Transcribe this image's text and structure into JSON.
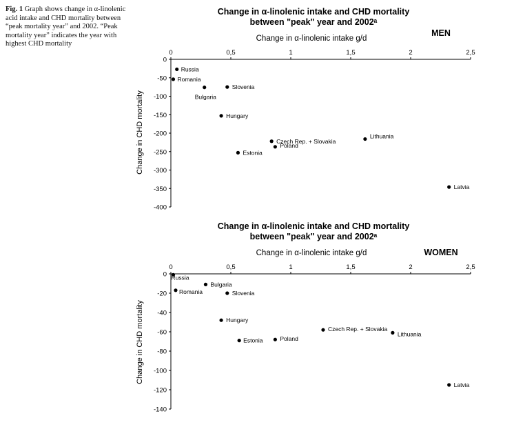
{
  "caption": {
    "fig_label": "Fig. 1",
    "text": "Graph shows change in α-linolenic acid intake and CHD mortality between “peak mortality year” and 2002. “Peak mortality year” indicates the year with highest CHD mortality"
  },
  "chart_data": [
    {
      "type": "scatter",
      "title": "Change in α-linolenic intake and CHD mortality",
      "subtitle": "between \"peak\" year and 2002ᵃ",
      "group_label": "MEN",
      "xlabel": "Change in α-linolenic intake g/d",
      "ylabel": "Change in CHD mortality",
      "xlim": [
        0,
        2.5
      ],
      "ylim": [
        -400,
        0
      ],
      "x_ticks": [
        0,
        0.5,
        1,
        1.5,
        2,
        2.5
      ],
      "x_tick_labels": [
        "0",
        "0,5",
        "1",
        "1,5",
        "2",
        "2,5"
      ],
      "y_ticks": [
        0,
        -50,
        -100,
        -150,
        -200,
        -250,
        -300,
        -350,
        -400
      ],
      "y_tick_labels": [
        "0",
        "-50",
        "-100",
        "-150",
        "-200",
        "-250",
        "-300",
        "-350",
        "-400"
      ],
      "grid": false,
      "points": [
        {
          "label": "Russia",
          "x": 0.05,
          "y": -27
        },
        {
          "label": "Romania",
          "x": 0.02,
          "y": -54
        },
        {
          "label": "Bulgaria",
          "x": 0.28,
          "y": -76
        },
        {
          "label": "Slovenia",
          "x": 0.47,
          "y": -75
        },
        {
          "label": "Hungary",
          "x": 0.42,
          "y": -153
        },
        {
          "label": "Czech Rep. + Slovakia",
          "x": 0.84,
          "y": -222
        },
        {
          "label": "Poland",
          "x": 0.87,
          "y": -237
        },
        {
          "label": "Estonia",
          "x": 0.56,
          "y": -253
        },
        {
          "label": "Lithuania",
          "x": 1.62,
          "y": -216
        },
        {
          "label": "Latvia",
          "x": 2.32,
          "y": -346
        }
      ]
    },
    {
      "type": "scatter",
      "title": "Change in α-linolenic intake and CHD mortality",
      "subtitle": "between \"peak\" year and 2002ᵃ",
      "group_label": "WOMEN",
      "xlabel": "Change in α-linolenic intake g/d",
      "ylabel": "Change in CHD mortality",
      "xlim": [
        0,
        2.5
      ],
      "ylim": [
        -140,
        0
      ],
      "x_ticks": [
        0,
        0.5,
        1,
        1.5,
        2,
        2.5
      ],
      "x_tick_labels": [
        "0",
        "0,5",
        "1",
        "1,5",
        "2",
        "2,5"
      ],
      "y_ticks": [
        0,
        -20,
        -40,
        -60,
        -80,
        -100,
        -120,
        -140
      ],
      "y_tick_labels": [
        "0",
        "-20",
        "-40",
        "-60",
        "-80",
        "-100",
        "-120",
        "-140"
      ],
      "grid": false,
      "points": [
        {
          "label": "Russia",
          "x": 0.02,
          "y": -1
        },
        {
          "label": "Romania",
          "x": 0.04,
          "y": -17
        },
        {
          "label": "Bulgaria",
          "x": 0.29,
          "y": -11
        },
        {
          "label": "Slovenia",
          "x": 0.47,
          "y": -20
        },
        {
          "label": "Hungary",
          "x": 0.42,
          "y": -48
        },
        {
          "label": "Estonia",
          "x": 0.57,
          "y": -69
        },
        {
          "label": "Poland",
          "x": 0.87,
          "y": -68
        },
        {
          "label": "Czech Rep. + Slovakia",
          "x": 1.27,
          "y": -58
        },
        {
          "label": "Lithuania",
          "x": 1.85,
          "y": -61
        },
        {
          "label": "Latvia",
          "x": 2.32,
          "y": -115
        }
      ]
    }
  ]
}
